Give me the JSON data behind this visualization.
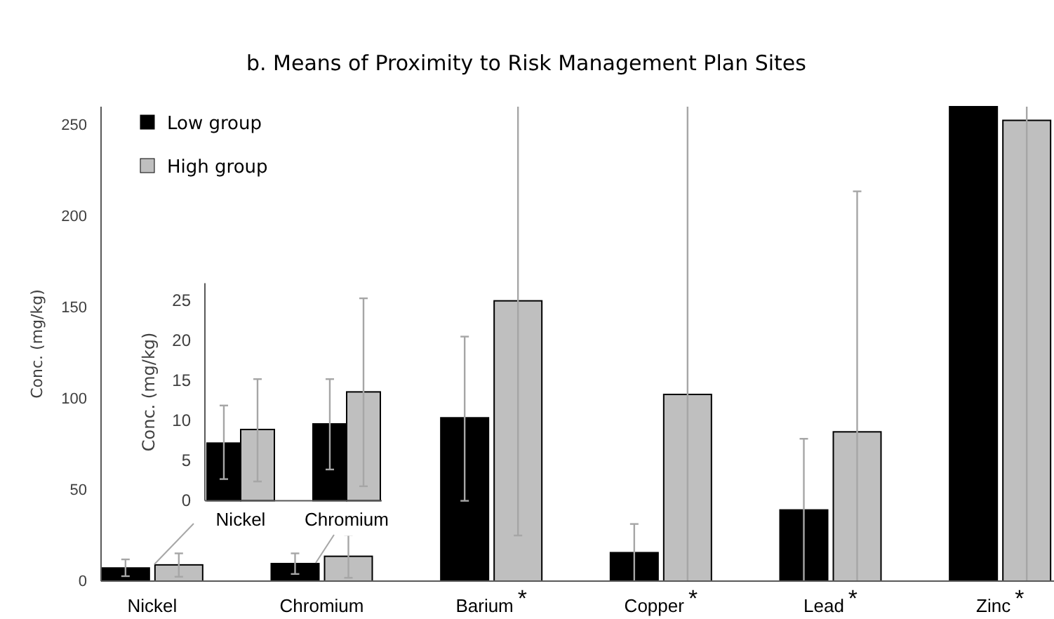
{
  "chart_data": [
    {
      "type": "bar",
      "title": "b. Means of Proximity to Risk Management Plan Sites",
      "ylabel": "Conc. (mg/kg)",
      "categories": [
        "Nickel",
        "Chromium",
        "Barium$^{*}$",
        "Copper$^{*}$",
        "Lead$^{*}$",
        "Zinc$^{*}$"
      ],
      "series": [
        {
          "name": "Low group",
          "color": "#000000",
          "values": [
            7.2,
            9.6,
            89.5,
            15.6,
            39,
            260
          ],
          "errors": [
            [
              2.7,
              11.9
            ],
            [
              3.9,
              15.2
            ],
            [
              44,
              134
            ],
            [
              0,
              31.3
            ],
            [
              0,
              78
            ],
            null
          ]
        },
        {
          "name": "High group",
          "color": "#bfbfbf",
          "values": [
            8.9,
            13.6,
            153.6,
            102.3,
            81.8,
            252.5
          ],
          "errors": [
            [
              2.4,
              15.2
            ],
            [
              1.8,
              25.3
            ],
            [
              25,
              260
            ],
            [
              0,
              260
            ],
            [
              0,
              213.6
            ],
            [
              0,
              260
            ]
          ]
        }
      ],
      "ylim": [
        0,
        260
      ],
      "yticks": [
        0,
        50,
        100,
        150,
        200,
        250
      ],
      "legend": "top left"
    },
    {
      "type": "bar",
      "ylabel": "Conc. (mg/kg)",
      "categories": [
        "Nickel",
        "Chromium"
      ],
      "series": [
        {
          "color": "#000000",
          "values": [
            7.2,
            9.6
          ],
          "errors": [
            [
              2.7,
              11.9
            ],
            [
              3.9,
              15.2
            ]
          ]
        },
        {
          "color": "#bfbfbf",
          "values": [
            8.9,
            13.6
          ],
          "errors": [
            [
              2.4,
              15.2
            ],
            [
              1.8,
              25.3
            ]
          ]
        }
      ],
      "ylim": [
        0,
        27.2
      ],
      "yticks": [
        0,
        5,
        10,
        15,
        20,
        25
      ]
    }
  ]
}
